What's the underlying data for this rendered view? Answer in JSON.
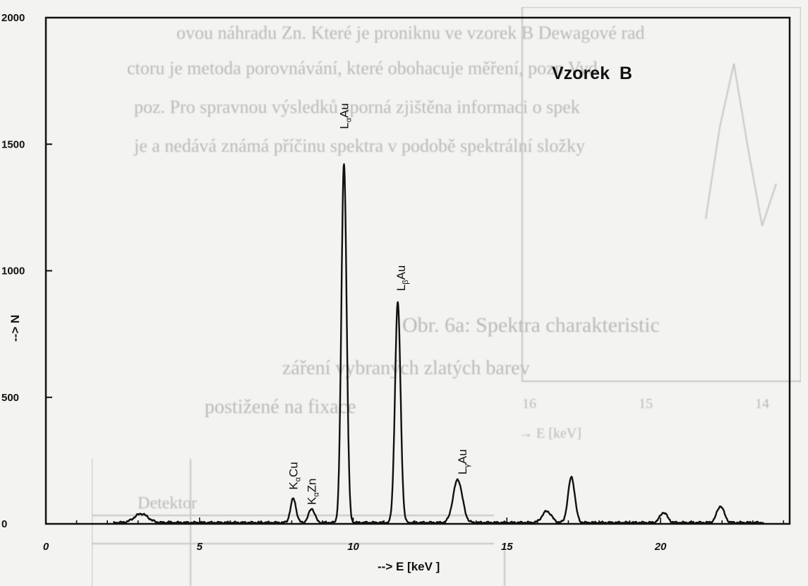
{
  "chart_data": {
    "type": "line",
    "title": "Vzorek  B",
    "xlabel": "--> E [keV ]",
    "ylabel": "--> N",
    "xlim": [
      0,
      24.2
    ],
    "ylim": [
      0,
      2000
    ],
    "x_ticks": [
      0,
      5,
      10,
      15,
      20
    ],
    "y_ticks": [
      0,
      500,
      1000,
      1500,
      2000
    ],
    "grid": false,
    "baseline": 5,
    "peaks": [
      {
        "x": 3.1,
        "height": 35,
        "width": 0.22
      },
      {
        "x": 8.05,
        "height": 95,
        "width": 0.09
      },
      {
        "x": 8.65,
        "height": 55,
        "width": 0.1
      },
      {
        "x": 9.7,
        "height": 1420,
        "width": 0.085
      },
      {
        "x": 11.45,
        "height": 870,
        "width": 0.09
      },
      {
        "x": 13.4,
        "height": 170,
        "width": 0.15
      },
      {
        "x": 16.3,
        "height": 45,
        "width": 0.15
      },
      {
        "x": 17.1,
        "height": 180,
        "width": 0.11
      },
      {
        "x": 20.1,
        "height": 40,
        "width": 0.12
      },
      {
        "x": 21.95,
        "height": 65,
        "width": 0.12
      }
    ],
    "annotations": [
      {
        "id": "kacu",
        "main": "K",
        "sub": "α",
        "rest": "Cu",
        "x": 8.05,
        "y": 135
      },
      {
        "id": "kazn",
        "main": "K",
        "sub": "α",
        "rest": "Zn",
        "x": 8.65,
        "y": 75
      },
      {
        "id": "laau",
        "main": "L",
        "sub": "α",
        "rest": "Au",
        "x": 9.7,
        "y": 1560
      },
      {
        "id": "lbau",
        "main": "L",
        "sub": "β",
        "rest": "Au",
        "x": 11.55,
        "y": 920
      },
      {
        "id": "lgau",
        "main": "L",
        "sub": "γ",
        "rest": "Au",
        "x": 13.55,
        "y": 195
      }
    ]
  },
  "background_text": {
    "lines": [
      "ovou náhradu Zn. Které je proniknu ve vzorek B Dewagové rad",
      "ctoru je metoda porovnávání, které obohacuje měření, pozn Vyd",
      "poz. Pro spravnou výsledků sporná zjištěna informaci o spek",
      "je a nedává známá příčinu spektra v podobě spektrální složky"
    ],
    "caption_lines": [
      "Obr. 6a: Spektra charakteristic",
      "záření vybraných zlatých barev",
      "postižené na fixace"
    ],
    "inset_ticks": [
      "14",
      "15",
      "16"
    ],
    "inset_axis": "→  E [keV]",
    "lower_label": "Detektor"
  }
}
